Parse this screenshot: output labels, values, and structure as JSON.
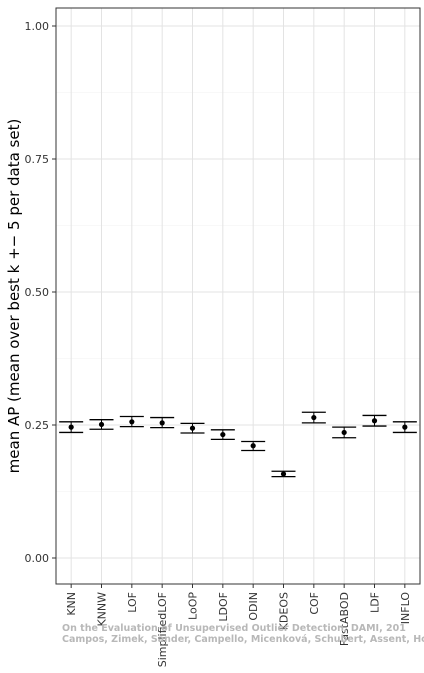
{
  "chart_data": {
    "type": "scatter",
    "title": "",
    "xlabel": "",
    "ylabel": "mean AP (mean over best k +− 5 per data set)",
    "ylim": [
      0,
      1.06
    ],
    "y_ticks": [
      0.0,
      0.25,
      0.5,
      0.75,
      1.0
    ],
    "y_tick_labels": [
      "0.00",
      "0.25",
      "0.50",
      "0.75",
      "1.00"
    ],
    "grid": true,
    "error_bars": true,
    "categories": [
      "KNN",
      "KNNW",
      "LOF",
      "SimplifiedLOF",
      "LoOP",
      "LDOF",
      "ODIN",
      "KDEOS",
      "COF",
      "FastABOD",
      "LDF",
      "INFLO"
    ],
    "series": [
      {
        "values": [
          0.246,
          0.251,
          0.256,
          0.254,
          0.244,
          0.232,
          0.211,
          0.158,
          0.264,
          0.236,
          0.258,
          0.246
        ],
        "lower": [
          0.236,
          0.242,
          0.247,
          0.245,
          0.235,
          0.223,
          0.202,
          0.153,
          0.254,
          0.226,
          0.248,
          0.236
        ],
        "upper": [
          0.256,
          0.26,
          0.266,
          0.264,
          0.253,
          0.241,
          0.219,
          0.163,
          0.274,
          0.246,
          0.268,
          0.256
        ]
      }
    ],
    "annotations": [
      "On the Evaluation of Unsupervised Outlier Detection, DAMI, 201",
      "Campos, Zimek, Sander, Campello, Micenková, Schubert, Assent, Houle"
    ]
  }
}
